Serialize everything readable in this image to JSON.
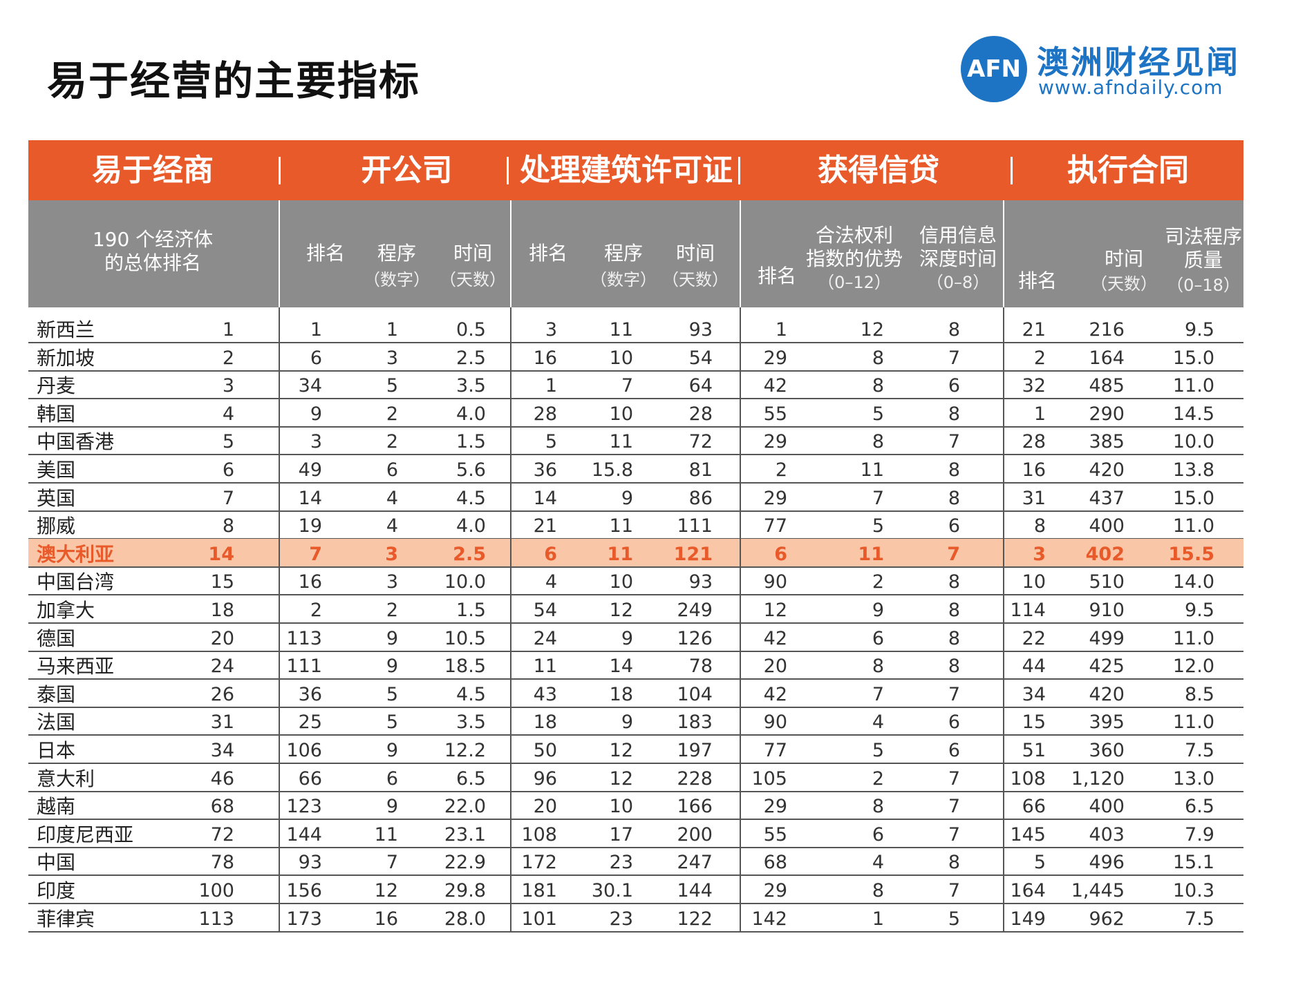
{
  "title": "易于经营的主要指标",
  "logo": {
    "mark": "AFN",
    "name": "澳洲财经见闻",
    "url": "www.afndaily.com"
  },
  "colors": {
    "header_orange": "#e85a2a",
    "subheader_grey": "#8c8c8c",
    "highlight": "#f9c6a8",
    "logo_blue": "#1e74c4"
  },
  "chart_data": {
    "type": "table",
    "groups": [
      "易于经商",
      "开公司",
      "处理建筑许可证",
      "获得信贷",
      "执行合同"
    ],
    "subheaders": {
      "overall": "190 个经济体\n的总体排名",
      "start_rank": "排名",
      "start_proc": "程序",
      "start_proc_unit": "（数字）",
      "start_time": "时间",
      "start_time_unit": "（天数）",
      "build_rank": "排名",
      "build_proc": "程序",
      "build_proc_unit": "（数字）",
      "build_time": "时间",
      "build_time_unit": "（天数）",
      "credit_rank": "排名",
      "credit_legal": "合法权利\n指数的优势",
      "credit_legal_unit": "（0–12）",
      "credit_info": "信用信息\n深度时间",
      "credit_info_unit": "（0–8）",
      "contract_rank": "排名",
      "contract_time": "时间",
      "contract_time_unit": "（天数）",
      "contract_quality": "司法程序\n质量",
      "contract_quality_unit": "（0–18）"
    },
    "highlight_row": "澳大利亚",
    "rows": [
      [
        "新西兰",
        "1",
        "1",
        "1",
        "0.5",
        "3",
        "11",
        "93",
        "1",
        "12",
        "8",
        "21",
        "216",
        "9.5"
      ],
      [
        "新加坡",
        "2",
        "6",
        "3",
        "2.5",
        "16",
        "10",
        "54",
        "29",
        "8",
        "7",
        "2",
        "164",
        "15.0"
      ],
      [
        "丹麦",
        "3",
        "34",
        "5",
        "3.5",
        "1",
        "7",
        "64",
        "42",
        "8",
        "6",
        "32",
        "485",
        "11.0"
      ],
      [
        "韩国",
        "4",
        "9",
        "2",
        "4.0",
        "28",
        "10",
        "28",
        "55",
        "5",
        "8",
        "1",
        "290",
        "14.5"
      ],
      [
        "中国香港",
        "5",
        "3",
        "2",
        "1.5",
        "5",
        "11",
        "72",
        "29",
        "8",
        "7",
        "28",
        "385",
        "10.0"
      ],
      [
        "美国",
        "6",
        "49",
        "6",
        "5.6",
        "36",
        "15.8",
        "81",
        "2",
        "11",
        "8",
        "16",
        "420",
        "13.8"
      ],
      [
        "英国",
        "7",
        "14",
        "4",
        "4.5",
        "14",
        "9",
        "86",
        "29",
        "7",
        "8",
        "31",
        "437",
        "15.0"
      ],
      [
        "挪威",
        "8",
        "19",
        "4",
        "4.0",
        "21",
        "11",
        "111",
        "77",
        "5",
        "6",
        "8",
        "400",
        "11.0"
      ],
      [
        "澳大利亚",
        "14",
        "7",
        "3",
        "2.5",
        "6",
        "11",
        "121",
        "6",
        "11",
        "7",
        "3",
        "402",
        "15.5"
      ],
      [
        "中国台湾",
        "15",
        "16",
        "3",
        "10.0",
        "4",
        "10",
        "93",
        "90",
        "2",
        "8",
        "10",
        "510",
        "14.0"
      ],
      [
        "加拿大",
        "18",
        "2",
        "2",
        "1.5",
        "54",
        "12",
        "249",
        "12",
        "9",
        "8",
        "114",
        "910",
        "9.5"
      ],
      [
        "德国",
        "20",
        "113",
        "9",
        "10.5",
        "24",
        "9",
        "126",
        "42",
        "6",
        "8",
        "22",
        "499",
        "11.0"
      ],
      [
        "马来西亚",
        "24",
        "111",
        "9",
        "18.5",
        "11",
        "14",
        "78",
        "20",
        "8",
        "8",
        "44",
        "425",
        "12.0"
      ],
      [
        "泰国",
        "26",
        "36",
        "5",
        "4.5",
        "43",
        "18",
        "104",
        "42",
        "7",
        "7",
        "34",
        "420",
        "8.5"
      ],
      [
        "法国",
        "31",
        "25",
        "5",
        "3.5",
        "18",
        "9",
        "183",
        "90",
        "4",
        "6",
        "15",
        "395",
        "11.0"
      ],
      [
        "日本",
        "34",
        "106",
        "9",
        "12.2",
        "50",
        "12",
        "197",
        "77",
        "5",
        "6",
        "51",
        "360",
        "7.5"
      ],
      [
        "意大利",
        "46",
        "66",
        "6",
        "6.5",
        "96",
        "12",
        "228",
        "105",
        "2",
        "7",
        "108",
        "1,120",
        "13.0"
      ],
      [
        "越南",
        "68",
        "123",
        "9",
        "22.0",
        "20",
        "10",
        "166",
        "29",
        "8",
        "7",
        "66",
        "400",
        "6.5"
      ],
      [
        "印度尼西亚",
        "72",
        "144",
        "11",
        "23.1",
        "108",
        "17",
        "200",
        "55",
        "6",
        "7",
        "145",
        "403",
        "7.9"
      ],
      [
        "中国",
        "78",
        "93",
        "7",
        "22.9",
        "172",
        "23",
        "247",
        "68",
        "4",
        "8",
        "5",
        "496",
        "15.1"
      ],
      [
        "印度",
        "100",
        "156",
        "12",
        "29.8",
        "181",
        "30.1",
        "144",
        "29",
        "8",
        "7",
        "164",
        "1,445",
        "10.3"
      ],
      [
        "菲律宾",
        "113",
        "173",
        "16",
        "28.0",
        "101",
        "23",
        "122",
        "142",
        "1",
        "5",
        "149",
        "962",
        "7.5"
      ]
    ]
  }
}
